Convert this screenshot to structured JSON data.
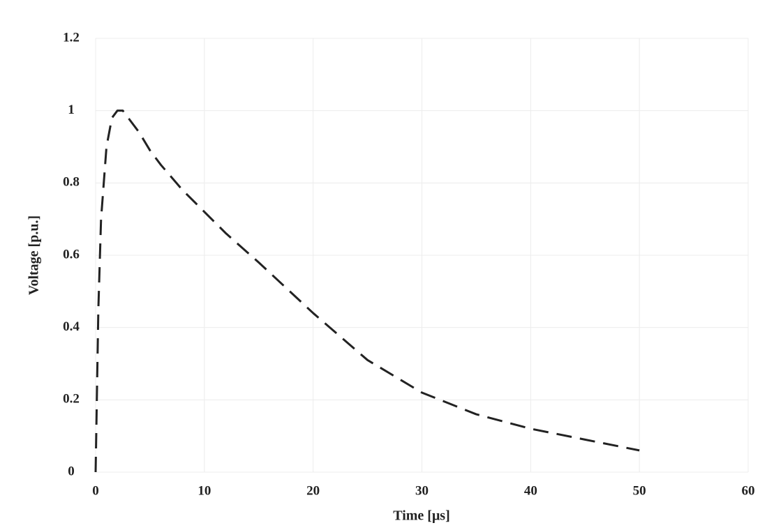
{
  "chart_data": {
    "type": "line",
    "x_label": "Time [μs]",
    "y_label": "Voltage [p.u.]",
    "x": [
      0,
      0.25,
      0.5,
      1,
      1.5,
      2,
      2.5,
      3,
      4,
      5,
      6,
      8,
      10,
      12,
      15,
      20,
      25,
      30,
      35,
      40,
      45,
      50
    ],
    "series": [
      {
        "color": "#222222",
        "values": [
          0,
          0.45,
          0.7,
          0.9,
          0.98,
          1.0,
          1.0,
          0.98,
          0.94,
          0.89,
          0.85,
          0.78,
          0.72,
          0.66,
          0.58,
          0.44,
          0.31,
          0.22,
          0.16,
          0.12,
          0.09,
          0.06
        ]
      }
    ],
    "xlim": [
      0,
      60
    ],
    "ylim": [
      0,
      1.2
    ],
    "xticks": [
      0,
      10,
      20,
      30,
      40,
      50,
      60
    ],
    "yticks": [
      0,
      0.2,
      0.4,
      0.6,
      0.8,
      1,
      1.2
    ],
    "grid": true,
    "dashed": true
  }
}
